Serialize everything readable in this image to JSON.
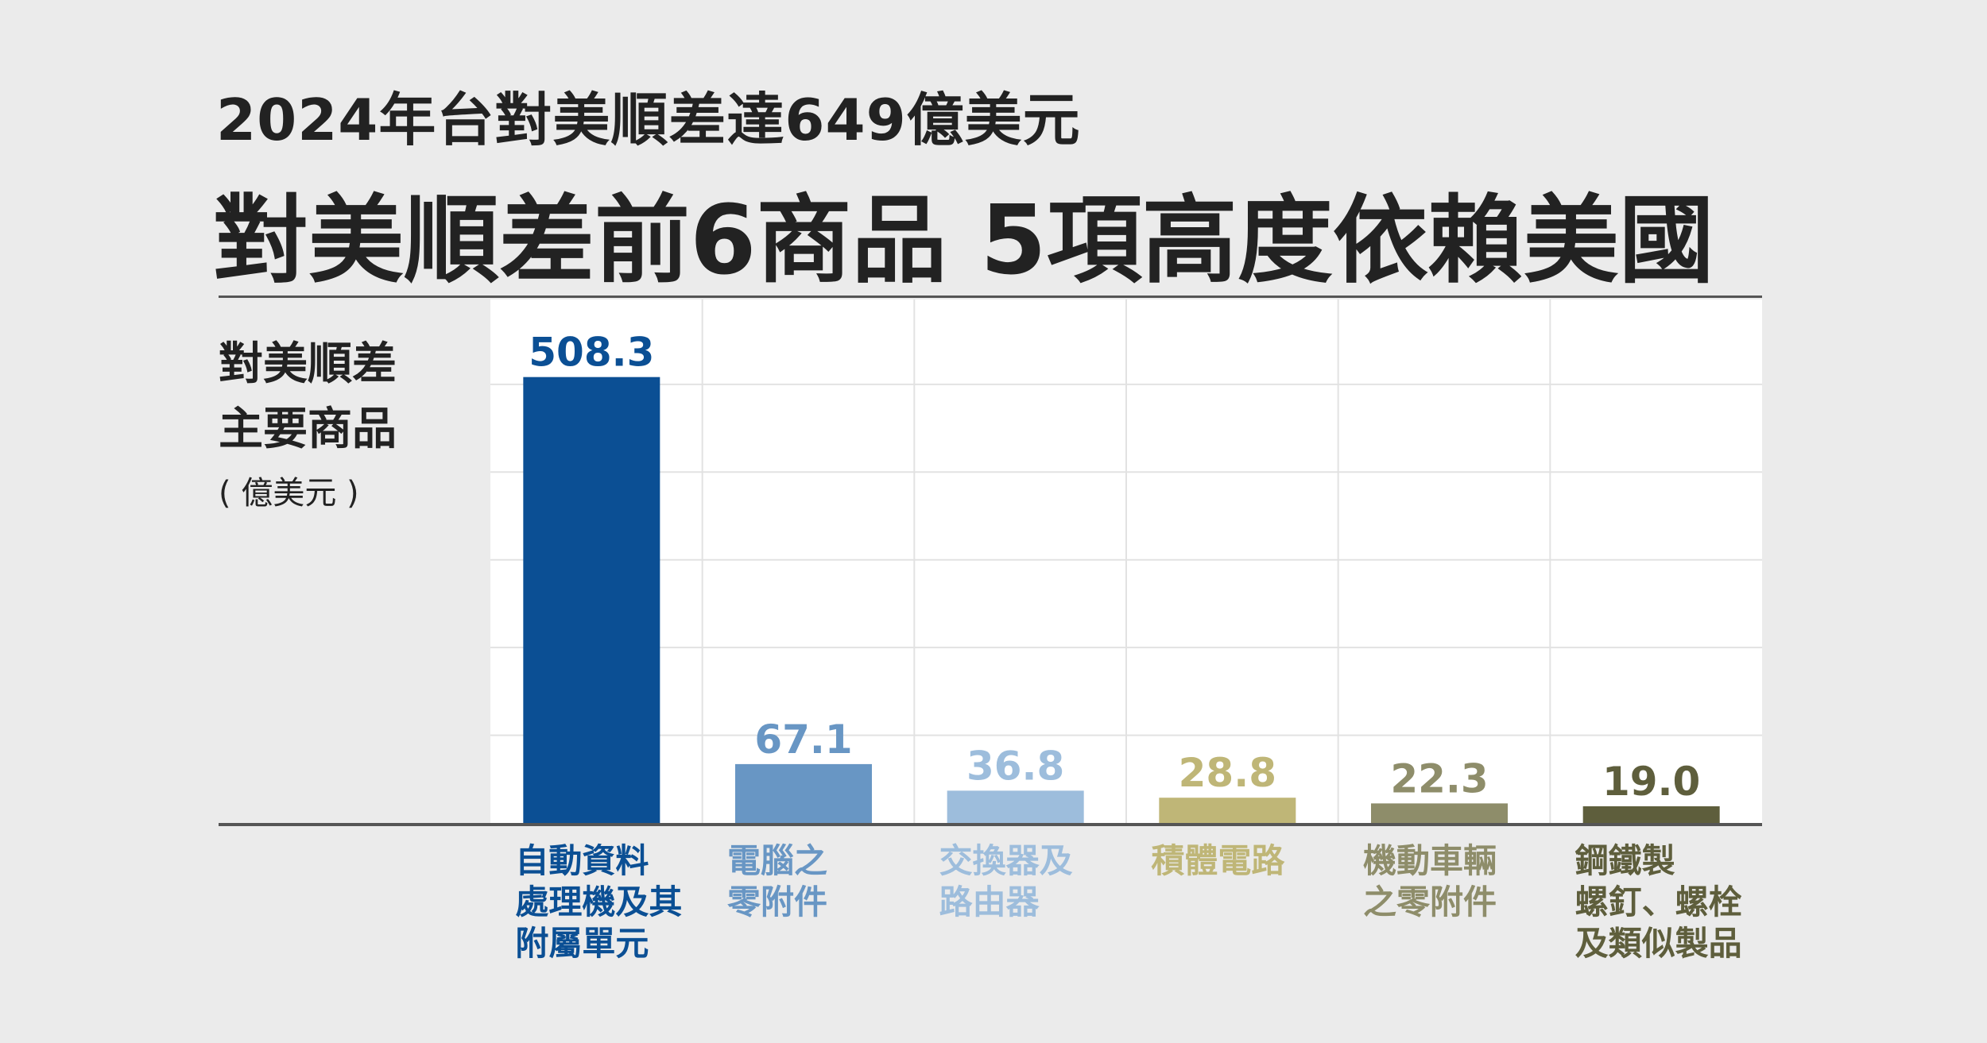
{
  "header": {
    "subtitle": "2024年台對美順差達649億美元",
    "title": "對美順差前6商品 5項高度依賴美國"
  },
  "axis": {
    "label_line1": "對美順差",
    "label_line2": "主要商品",
    "unit": "( 億美元 )"
  },
  "chart_data": {
    "type": "bar",
    "title": "對美順差前6商品 5項高度依賴美國",
    "ylabel": "對美順差主要商品 (億美元)",
    "ylim": [
      0,
      550
    ],
    "grid": true,
    "categories": [
      "自動資料處理機及其附屬單元",
      "電腦之零附件",
      "交換器及路由器",
      "積體電路",
      "機動車輛之零附件",
      "鋼鐵製螺釘、螺栓及類似製品"
    ],
    "category_lines": [
      [
        "自動資料",
        "處理機及其",
        "附屬單元"
      ],
      [
        "電腦之",
        "零附件"
      ],
      [
        "交換器及",
        "路由器"
      ],
      [
        "積體電路"
      ],
      [
        "機動車輛",
        "之零附件"
      ],
      [
        "鋼鐵製",
        "螺釘、螺栓",
        "及類似製品"
      ]
    ],
    "values": [
      508.3,
      67.1,
      36.8,
      28.8,
      22.3,
      19.0
    ],
    "value_labels": [
      "508.3",
      "67.1",
      "36.8",
      "28.8",
      "22.3",
      "19.0"
    ],
    "colors": [
      "#0b4f94",
      "#6896c4",
      "#9dbddc",
      "#bfb677",
      "#8e8d6a",
      "#5e5e3c"
    ]
  }
}
